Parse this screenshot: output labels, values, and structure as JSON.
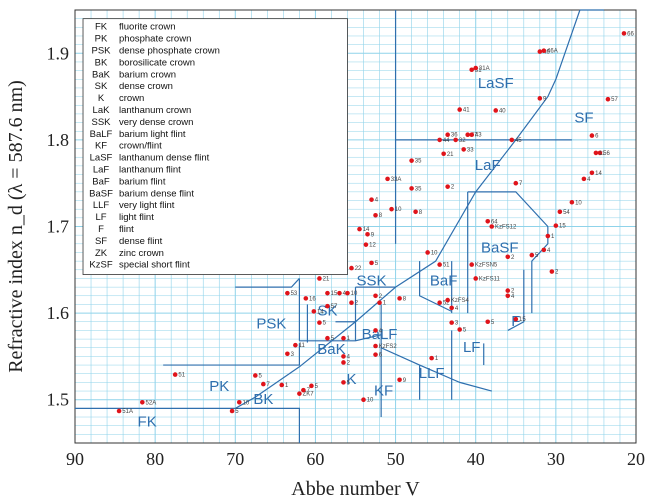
{
  "chart_data": {
    "type": "scatter",
    "xlabel": "Abbe number V",
    "ylabel": "Refractive index n_d  (λ = 587.6 nm)",
    "xlim": [
      90,
      20
    ],
    "ylim": [
      1.45,
      1.95
    ],
    "x_ticks": [
      "90",
      "80",
      "70",
      "60",
      "50",
      "40",
      "30",
      "20"
    ],
    "y_ticks": [
      "1.5",
      "1.6",
      "1.7",
      "1.8",
      "1.9"
    ],
    "grid": "on",
    "legend_position": "top-left",
    "colors": {
      "grid": "#8fd3ea",
      "region": "#2f6fae",
      "point": "#e0141b"
    },
    "legend": [
      {
        "abbr": "FK",
        "desc": "fluorite crown"
      },
      {
        "abbr": "PK",
        "desc": "phosphate crown"
      },
      {
        "abbr": "PSK",
        "desc": "dense phosphate crown"
      },
      {
        "abbr": "BK",
        "desc": "borosilicate crown"
      },
      {
        "abbr": "BaK",
        "desc": "barium crown"
      },
      {
        "abbr": "SK",
        "desc": "dense crown"
      },
      {
        "abbr": "K",
        "desc": "crown"
      },
      {
        "abbr": "LaK",
        "desc": "lanthanum crown"
      },
      {
        "abbr": "SSK",
        "desc": "very dense crown"
      },
      {
        "abbr": "BaLF",
        "desc": "barium light flint"
      },
      {
        "abbr": "KF",
        "desc": "crown/flint"
      },
      {
        "abbr": "LaSF",
        "desc": "lanthanum dense flint"
      },
      {
        "abbr": "LaF",
        "desc": "lanthanum flint"
      },
      {
        "abbr": "BaF",
        "desc": "barium flint"
      },
      {
        "abbr": "BaSF",
        "desc": "barium dense flint"
      },
      {
        "abbr": "LLF",
        "desc": "very light flint"
      },
      {
        "abbr": "LF",
        "desc": "light flint"
      },
      {
        "abbr": "F",
        "desc": "flint"
      },
      {
        "abbr": "SF",
        "desc": "dense flint"
      },
      {
        "abbr": "ZK",
        "desc": "zinc crown"
      },
      {
        "abbr": "KzSF",
        "desc": "special short flint"
      }
    ],
    "regions": [
      {
        "label": "LaSF",
        "x": 37.5,
        "y": 1.86
      },
      {
        "label": "SF",
        "x": 26.5,
        "y": 1.82
      },
      {
        "label": "LaF",
        "x": 38.5,
        "y": 1.765
      },
      {
        "label": "LaK",
        "x": 58.5,
        "y": 1.725
      },
      {
        "label": "BaSF",
        "x": 37,
        "y": 1.67
      },
      {
        "label": "SSK",
        "x": 53,
        "y": 1.632
      },
      {
        "label": "BaF",
        "x": 44,
        "y": 1.632
      },
      {
        "label": "SK",
        "x": 58.5,
        "y": 1.597
      },
      {
        "label": "PSK",
        "x": 65.5,
        "y": 1.582
      },
      {
        "label": "BaLF",
        "x": 52,
        "y": 1.57
      },
      {
        "label": "BaK",
        "x": 58,
        "y": 1.553
      },
      {
        "label": "LF",
        "x": 40.5,
        "y": 1.555
      },
      {
        "label": "F",
        "x": 35,
        "y": 1.585
      },
      {
        "label": "K",
        "x": 55.5,
        "y": 1.518
      },
      {
        "label": "PK",
        "x": 72,
        "y": 1.51
      },
      {
        "label": "LLF",
        "x": 45.5,
        "y": 1.525
      },
      {
        "label": "KF",
        "x": 51.5,
        "y": 1.505
      },
      {
        "label": "BK",
        "x": 66.5,
        "y": 1.495
      },
      {
        "label": "FK",
        "x": 81,
        "y": 1.469
      }
    ],
    "series": [
      {
        "name": "glasses",
        "points": [
          {
            "x": 84.5,
            "y": 1.487,
            "label": "51A"
          },
          {
            "x": 81.6,
            "y": 1.497,
            "label": "52A"
          },
          {
            "x": 77.5,
            "y": 1.529,
            "label": "51"
          },
          {
            "x": 70.4,
            "y": 1.487,
            "label": "5"
          },
          {
            "x": 69.5,
            "y": 1.497,
            "label": "10"
          },
          {
            "x": 67.5,
            "y": 1.528,
            "label": "5"
          },
          {
            "x": 66.5,
            "y": 1.518,
            "label": "7"
          },
          {
            "x": 64.2,
            "y": 1.517,
            "label": "1"
          },
          {
            "x": 63.5,
            "y": 1.553,
            "label": "3"
          },
          {
            "x": 62.0,
            "y": 1.507,
            "label": "ZK7"
          },
          {
            "x": 61.5,
            "y": 1.511,
            "label": "7"
          },
          {
            "x": 60.5,
            "y": 1.516,
            "label": "5"
          },
          {
            "x": 56.5,
            "y": 1.52,
            "label": "5"
          },
          {
            "x": 54.0,
            "y": 1.5,
            "label": "10"
          },
          {
            "x": 49.5,
            "y": 1.523,
            "label": "9"
          },
          {
            "x": 56.5,
            "y": 1.571,
            "label": "1"
          },
          {
            "x": 56.5,
            "y": 1.543,
            "label": "2"
          },
          {
            "x": 56.5,
            "y": 1.55,
            "label": "4"
          },
          {
            "x": 58.5,
            "y": 1.571,
            "label": "5"
          },
          {
            "x": 62.5,
            "y": 1.563,
            "label": "11"
          },
          {
            "x": 60.2,
            "y": 1.602,
            "label": "14"
          },
          {
            "x": 61.2,
            "y": 1.617,
            "label": "16"
          },
          {
            "x": 59.5,
            "y": 1.589,
            "label": "5"
          },
          {
            "x": 58.5,
            "y": 1.623,
            "label": "15"
          },
          {
            "x": 58.5,
            "y": 1.608,
            "label": "57"
          },
          {
            "x": 57.0,
            "y": 1.623,
            "label": "4"
          },
          {
            "x": 55.5,
            "y": 1.612,
            "label": "2"
          },
          {
            "x": 56.0,
            "y": 1.623,
            "label": "10"
          },
          {
            "x": 63.5,
            "y": 1.623,
            "label": "53"
          },
          {
            "x": 59.5,
            "y": 1.64,
            "label": "21"
          },
          {
            "x": 58.0,
            "y": 1.651,
            "label": "7"
          },
          {
            "x": 55.5,
            "y": 1.652,
            "label": "22"
          },
          {
            "x": 54.5,
            "y": 1.697,
            "label": "14"
          },
          {
            "x": 53.5,
            "y": 1.691,
            "label": "9"
          },
          {
            "x": 53.7,
            "y": 1.679,
            "label": "12"
          },
          {
            "x": 52.5,
            "y": 1.713,
            "label": "8"
          },
          {
            "x": 53.0,
            "y": 1.731,
            "label": "4"
          },
          {
            "x": 50.5,
            "y": 1.72,
            "label": "10"
          },
          {
            "x": 51.0,
            "y": 1.755,
            "label": "33A"
          },
          {
            "x": 53.0,
            "y": 1.658,
            "label": "5"
          },
          {
            "x": 52.5,
            "y": 1.62,
            "label": "2"
          },
          {
            "x": 52.0,
            "y": 1.612,
            "label": "1"
          },
          {
            "x": 49.5,
            "y": 1.617,
            "label": "8"
          },
          {
            "x": 52.5,
            "y": 1.58,
            "label": "4"
          },
          {
            "x": 52.5,
            "y": 1.562,
            "label": "KzFS2"
          },
          {
            "x": 52.5,
            "y": 1.552,
            "label": "6"
          },
          {
            "x": 48.0,
            "y": 1.776,
            "label": "35"
          },
          {
            "x": 48.0,
            "y": 1.744,
            "label": "35"
          },
          {
            "x": 47.5,
            "y": 1.717,
            "label": "8"
          },
          {
            "x": 46.0,
            "y": 1.67,
            "label": "10"
          },
          {
            "x": 44.5,
            "y": 1.656,
            "label": "51"
          },
          {
            "x": 44.5,
            "y": 1.612,
            "label": "52"
          },
          {
            "x": 43.5,
            "y": 1.615,
            "label": "KzFS4"
          },
          {
            "x": 43.0,
            "y": 1.606,
            "label": "4"
          },
          {
            "x": 43.0,
            "y": 1.589,
            "label": "3"
          },
          {
            "x": 45.5,
            "y": 1.548,
            "label": "1"
          },
          {
            "x": 42.0,
            "y": 1.581,
            "label": "5"
          },
          {
            "x": 43.5,
            "y": 1.746,
            "label": "2"
          },
          {
            "x": 44.5,
            "y": 1.8,
            "label": "44"
          },
          {
            "x": 44.0,
            "y": 1.784,
            "label": "21"
          },
          {
            "x": 43.5,
            "y": 1.806,
            "label": "36"
          },
          {
            "x": 42.5,
            "y": 1.8,
            "label": "32"
          },
          {
            "x": 41.5,
            "y": 1.789,
            "label": "33"
          },
          {
            "x": 42.0,
            "y": 1.835,
            "label": "41"
          },
          {
            "x": 41.0,
            "y": 1.806,
            "label": "47"
          },
          {
            "x": 40.5,
            "y": 1.806,
            "label": "43"
          },
          {
            "x": 40.5,
            "y": 1.881,
            "label": "31"
          },
          {
            "x": 40.0,
            "y": 1.883,
            "label": "31A"
          },
          {
            "x": 37.5,
            "y": 1.834,
            "label": "40"
          },
          {
            "x": 40.5,
            "y": 1.656,
            "label": "KzFSN5"
          },
          {
            "x": 40.0,
            "y": 1.64,
            "label": "KzFS11"
          },
          {
            "x": 38.5,
            "y": 1.706,
            "label": "64"
          },
          {
            "x": 38.0,
            "y": 1.7,
            "label": "KzFS12"
          },
          {
            "x": 36.0,
            "y": 1.665,
            "label": "2"
          },
          {
            "x": 35.0,
            "y": 1.75,
            "label": "7"
          },
          {
            "x": 35.5,
            "y": 1.8,
            "label": "45"
          },
          {
            "x": 32.0,
            "y": 1.848,
            "label": "9"
          },
          {
            "x": 32.0,
            "y": 1.902,
            "label": "46"
          },
          {
            "x": 31.5,
            "y": 1.903,
            "label": "46A"
          },
          {
            "x": 36.0,
            "y": 1.626,
            "label": "2"
          },
          {
            "x": 36.0,
            "y": 1.62,
            "label": "4"
          },
          {
            "x": 33.0,
            "y": 1.667,
            "label": "5"
          },
          {
            "x": 31.5,
            "y": 1.673,
            "label": "4"
          },
          {
            "x": 30.5,
            "y": 1.648,
            "label": "2"
          },
          {
            "x": 31.0,
            "y": 1.689,
            "label": "1"
          },
          {
            "x": 30.0,
            "y": 1.701,
            "label": "15"
          },
          {
            "x": 29.5,
            "y": 1.717,
            "label": "54"
          },
          {
            "x": 28.0,
            "y": 1.728,
            "label": "10"
          },
          {
            "x": 25.5,
            "y": 1.762,
            "label": "14"
          },
          {
            "x": 26.5,
            "y": 1.755,
            "label": "4"
          },
          {
            "x": 24.5,
            "y": 1.785,
            "label": "56"
          },
          {
            "x": 25.0,
            "y": 1.785,
            "label": "11"
          },
          {
            "x": 25.5,
            "y": 1.805,
            "label": "6"
          },
          {
            "x": 23.5,
            "y": 1.847,
            "label": "57"
          },
          {
            "x": 21.5,
            "y": 1.923,
            "label": "66"
          },
          {
            "x": 38.5,
            "y": 1.59,
            "label": "5"
          },
          {
            "x": 35.0,
            "y": 1.593,
            "label": "15"
          }
        ]
      }
    ]
  }
}
